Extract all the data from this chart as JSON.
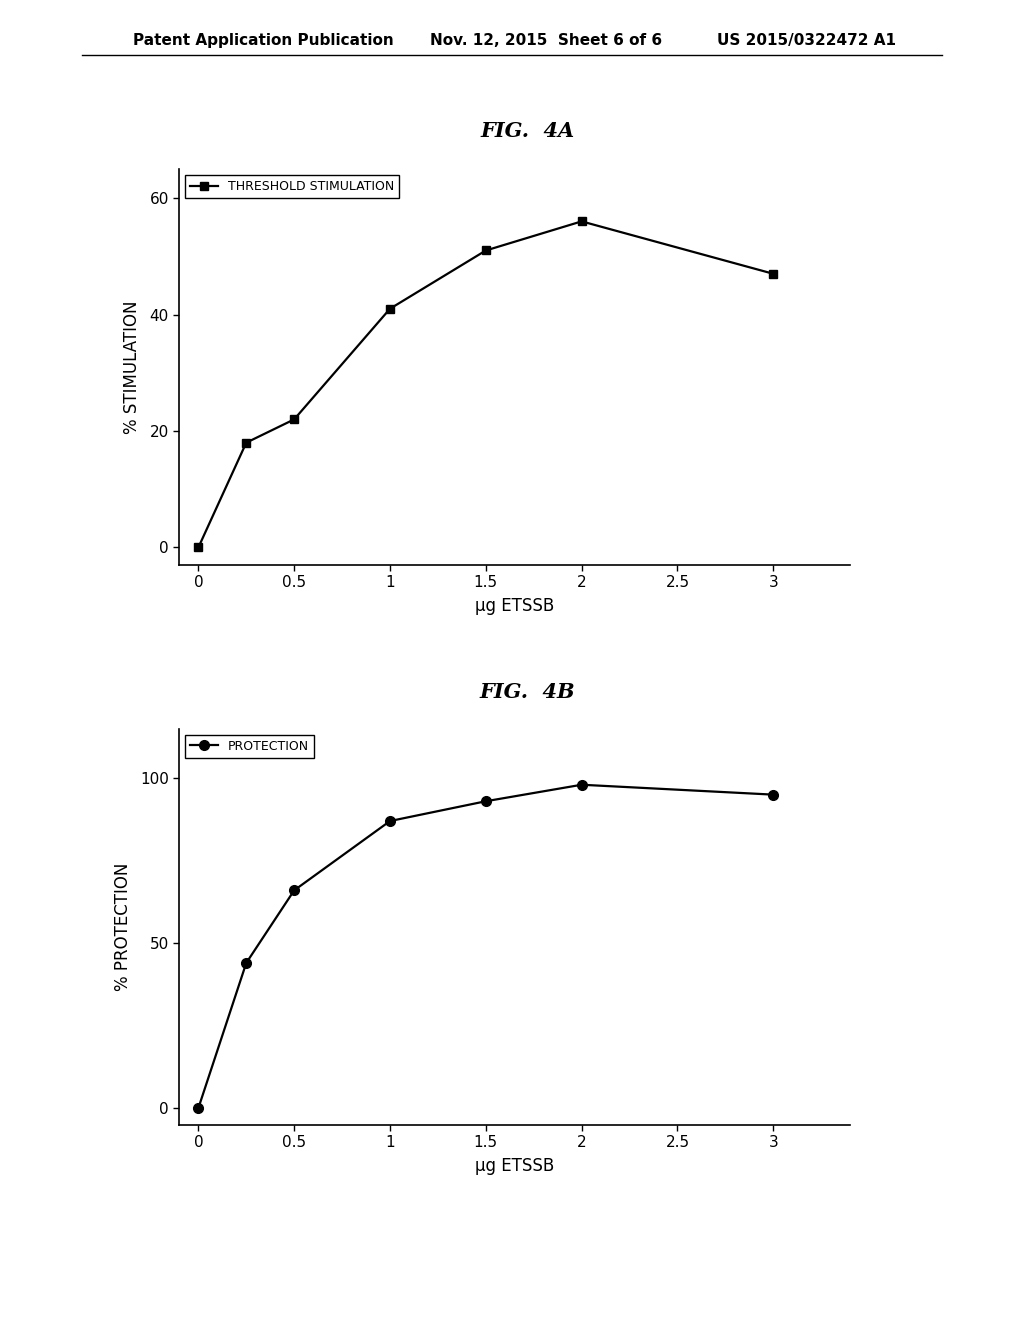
{
  "header_left": "Patent Application Publication",
  "header_mid": "Nov. 12, 2015  Sheet 6 of 6",
  "header_right": "US 2015/0322472 A1",
  "fig4a_title": "FIG.  4A",
  "fig4b_title": "FIG.  4B",
  "fig4a_x": [
    0,
    0.25,
    0.5,
    1.0,
    1.5,
    2.0,
    3.0
  ],
  "fig4a_y": [
    0,
    18,
    22,
    41,
    51,
    56,
    47
  ],
  "fig4a_xlabel": "μg ETSSB",
  "fig4a_ylabel": "% STIMULATION",
  "fig4a_legend": "THRESHOLD STIMULATION",
  "fig4a_xlim": [
    -0.1,
    3.4
  ],
  "fig4a_ylim": [
    -3,
    65
  ],
  "fig4a_yticks": [
    0,
    20,
    40,
    60
  ],
  "fig4a_xticks": [
    0,
    0.5,
    1.0,
    1.5,
    2.0,
    2.5,
    3.0
  ],
  "fig4b_x": [
    0,
    0.25,
    0.5,
    1.0,
    1.5,
    2.0,
    3.0
  ],
  "fig4b_y": [
    0,
    44,
    66,
    87,
    93,
    98,
    95
  ],
  "fig4b_xlabel": "μg ETSSB",
  "fig4b_ylabel": "% PROTECTION",
  "fig4b_legend": "PROTECTION",
  "fig4b_xlim": [
    -0.1,
    3.4
  ],
  "fig4b_ylim": [
    -5,
    115
  ],
  "fig4b_yticks": [
    0,
    50,
    100
  ],
  "fig4b_xticks": [
    0,
    0.5,
    1.0,
    1.5,
    2.0,
    2.5,
    3.0
  ],
  "line_color": "#000000",
  "bg_color": "#ffffff",
  "marker_size_square": 6,
  "marker_size_circle": 7,
  "linewidth": 1.6,
  "header_fontsize": 11,
  "title_fontsize": 15,
  "tick_fontsize": 11,
  "label_fontsize": 12,
  "legend_fontsize": 9
}
